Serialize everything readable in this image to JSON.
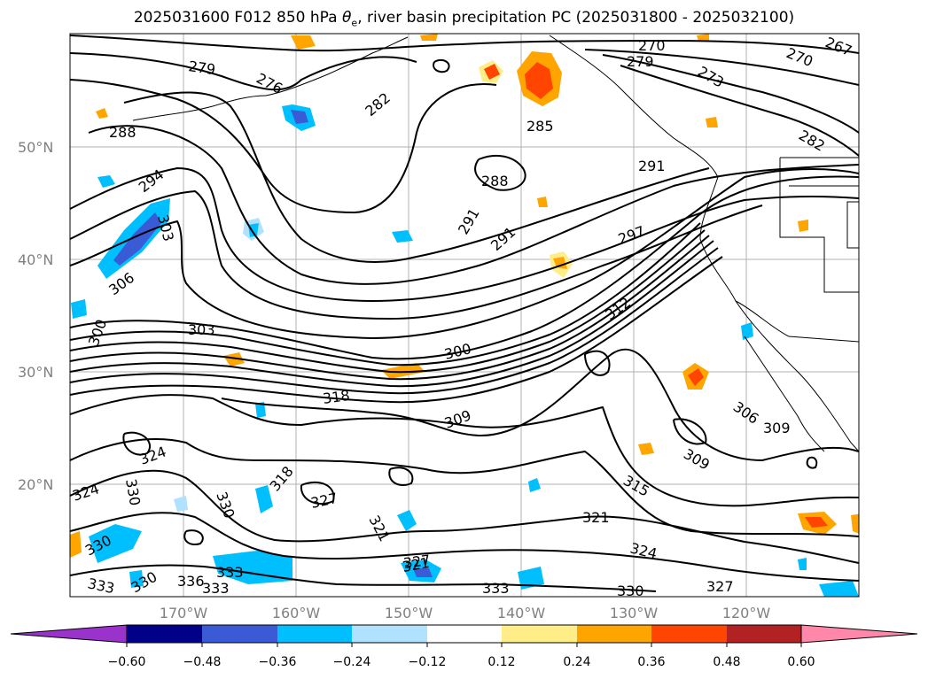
{
  "title_main": "2025031600 F012 850 hPa ",
  "title_theta": "θ",
  "title_sub": "e",
  "title_rest": ", river basin precipitation PC (2025031800 - 2025032100)",
  "lat_labels": [
    "50°N",
    "40°N",
    "30°N",
    "20°N"
  ],
  "lon_labels": [
    "170°W",
    "160°W",
    "150°W",
    "140°W",
    "130°W",
    "120°W"
  ],
  "contour_labels": [
    "279",
    "276",
    "282",
    "285",
    "270",
    "279",
    "270",
    "267",
    "273",
    "282",
    "291",
    "288",
    "288",
    "291",
    "291",
    "297",
    "294",
    "303",
    "306",
    "300",
    "303",
    "300",
    "312",
    "318",
    "309",
    "306",
    "309",
    "309",
    "315",
    "321",
    "324",
    "324",
    "330",
    "318",
    "327",
    "321",
    "321",
    "324",
    "330",
    "330",
    "333",
    "330",
    "336",
    "333",
    "333",
    "327",
    "333",
    "330",
    "327"
  ],
  "colorbar": {
    "colors": [
      "#9933cc",
      "#000088",
      "#3b5bd6",
      "#00bfff",
      "#b0e2ff",
      "#ffffff",
      "#ffee88",
      "#ffa500",
      "#ff4500",
      "#b22222",
      "#ff88aa"
    ],
    "tick_labels": [
      "−0.60",
      "−0.48",
      "−0.36",
      "−0.24",
      "−0.12",
      "0.12",
      "0.24",
      "0.36",
      "0.48",
      "0.60"
    ]
  }
}
